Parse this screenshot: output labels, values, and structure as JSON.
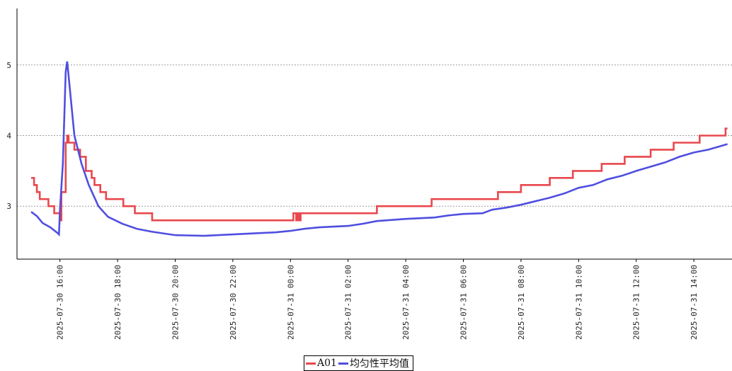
{
  "chart_data": {
    "type": "line",
    "title": "",
    "xlabel": "",
    "ylabel": "",
    "x_start": "2025-07-30 15:00",
    "x_end": "2025-07-31 15:15",
    "xlim": [
      "2025-07-30 15:00",
      "2025-07-31 15:15"
    ],
    "ylim": [
      2.25,
      5.8
    ],
    "grid": "horizontal dotted",
    "legend_position": "bottom-center",
    "y_ticks": [
      3,
      4,
      5
    ],
    "x_ticks": [
      "2025-07-30 16:00",
      "2025-07-30 18:00",
      "2025-07-30 20:00",
      "2025-07-30 22:00",
      "2025-07-31 00:00",
      "2025-07-31 02:00",
      "2025-07-31 04:00",
      "2025-07-31 06:00",
      "2025-07-31 08:00",
      "2025-07-31 10:00",
      "2025-07-31 12:00",
      "2025-07-31 14:00"
    ],
    "series": [
      {
        "name": "A01",
        "color": "#e8484d",
        "step": true,
        "points": [
          [
            "2025-07-30 15:00",
            3.4
          ],
          [
            "2025-07-30 15:06",
            3.3
          ],
          [
            "2025-07-30 15:12",
            3.2
          ],
          [
            "2025-07-30 15:18",
            3.1
          ],
          [
            "2025-07-30 15:36",
            3.0
          ],
          [
            "2025-07-30 15:48",
            2.9
          ],
          [
            "2025-07-30 16:00",
            2.8
          ],
          [
            "2025-07-30 16:03",
            3.2
          ],
          [
            "2025-07-30 16:12",
            3.9
          ],
          [
            "2025-07-30 16:15",
            4.0
          ],
          [
            "2025-07-30 16:18",
            3.9
          ],
          [
            "2025-07-30 16:30",
            3.8
          ],
          [
            "2025-07-30 16:42",
            3.7
          ],
          [
            "2025-07-30 16:54",
            3.5
          ],
          [
            "2025-07-30 17:06",
            3.4
          ],
          [
            "2025-07-30 17:12",
            3.3
          ],
          [
            "2025-07-30 17:24",
            3.2
          ],
          [
            "2025-07-30 17:36",
            3.1
          ],
          [
            "2025-07-30 18:12",
            3.0
          ],
          [
            "2025-07-30 18:36",
            2.9
          ],
          [
            "2025-07-30 19:12",
            2.8
          ],
          [
            "2025-07-31 00:06",
            2.9
          ],
          [
            "2025-07-31 00:12",
            2.8
          ],
          [
            "2025-07-31 00:15",
            2.9
          ],
          [
            "2025-07-31 00:18",
            2.8
          ],
          [
            "2025-07-31 00:21",
            2.9
          ],
          [
            "2025-07-31 03:00",
            3.0
          ],
          [
            "2025-07-31 04:54",
            3.1
          ],
          [
            "2025-07-31 07:12",
            3.2
          ],
          [
            "2025-07-31 08:00",
            3.3
          ],
          [
            "2025-07-31 09:00",
            3.4
          ],
          [
            "2025-07-31 09:48",
            3.5
          ],
          [
            "2025-07-31 10:48",
            3.6
          ],
          [
            "2025-07-31 11:36",
            3.7
          ],
          [
            "2025-07-31 12:30",
            3.8
          ],
          [
            "2025-07-31 13:18",
            3.9
          ],
          [
            "2025-07-31 14:12",
            4.0
          ],
          [
            "2025-07-31 15:06",
            4.1
          ],
          [
            "2025-07-31 15:10",
            4.1
          ]
        ]
      },
      {
        "name": "均匀性平均值",
        "color": "#4f4fe0",
        "step": false,
        "points": [
          [
            "2025-07-30 15:00",
            2.92
          ],
          [
            "2025-07-30 15:12",
            2.86
          ],
          [
            "2025-07-30 15:24",
            2.76
          ],
          [
            "2025-07-30 15:40",
            2.7
          ],
          [
            "2025-07-30 15:55",
            2.62
          ],
          [
            "2025-07-30 15:58",
            2.6
          ],
          [
            "2025-07-30 16:00",
            2.95
          ],
          [
            "2025-07-30 16:06",
            3.6
          ],
          [
            "2025-07-30 16:12",
            4.9
          ],
          [
            "2025-07-30 16:15",
            5.05
          ],
          [
            "2025-07-30 16:20",
            4.7
          ],
          [
            "2025-07-30 16:30",
            4.0
          ],
          [
            "2025-07-30 16:45",
            3.6
          ],
          [
            "2025-07-30 17:00",
            3.3
          ],
          [
            "2025-07-30 17:20",
            3.0
          ],
          [
            "2025-07-30 17:40",
            2.85
          ],
          [
            "2025-07-30 18:10",
            2.75
          ],
          [
            "2025-07-30 18:40",
            2.68
          ],
          [
            "2025-07-30 19:10",
            2.64
          ],
          [
            "2025-07-30 19:40",
            2.61
          ],
          [
            "2025-07-30 20:00",
            2.59
          ],
          [
            "2025-07-30 21:00",
            2.58
          ],
          [
            "2025-07-30 22:00",
            2.6
          ],
          [
            "2025-07-30 23:00",
            2.62
          ],
          [
            "2025-07-30 23:30",
            2.63
          ],
          [
            "2025-07-31 00:00",
            2.65
          ],
          [
            "2025-07-31 00:30",
            2.68
          ],
          [
            "2025-07-31 01:00",
            2.7
          ],
          [
            "2025-07-31 02:00",
            2.72
          ],
          [
            "2025-07-31 02:30",
            2.75
          ],
          [
            "2025-07-31 03:00",
            2.79
          ],
          [
            "2025-07-31 04:00",
            2.82
          ],
          [
            "2025-07-31 05:00",
            2.84
          ],
          [
            "2025-07-31 05:30",
            2.87
          ],
          [
            "2025-07-31 06:00",
            2.89
          ],
          [
            "2025-07-31 06:40",
            2.9
          ],
          [
            "2025-07-31 07:00",
            2.95
          ],
          [
            "2025-07-31 07:30",
            2.98
          ],
          [
            "2025-07-31 08:00",
            3.02
          ],
          [
            "2025-07-31 08:30",
            3.07
          ],
          [
            "2025-07-31 09:00",
            3.12
          ],
          [
            "2025-07-31 09:30",
            3.18
          ],
          [
            "2025-07-31 10:00",
            3.26
          ],
          [
            "2025-07-31 10:30",
            3.3
          ],
          [
            "2025-07-31 11:00",
            3.38
          ],
          [
            "2025-07-31 11:30",
            3.43
          ],
          [
            "2025-07-31 12:00",
            3.5
          ],
          [
            "2025-07-31 12:30",
            3.56
          ],
          [
            "2025-07-31 13:00",
            3.62
          ],
          [
            "2025-07-31 13:30",
            3.7
          ],
          [
            "2025-07-31 14:00",
            3.76
          ],
          [
            "2025-07-31 14:30",
            3.8
          ],
          [
            "2025-07-31 15:00",
            3.86
          ],
          [
            "2025-07-31 15:10",
            3.88
          ]
        ]
      }
    ]
  }
}
